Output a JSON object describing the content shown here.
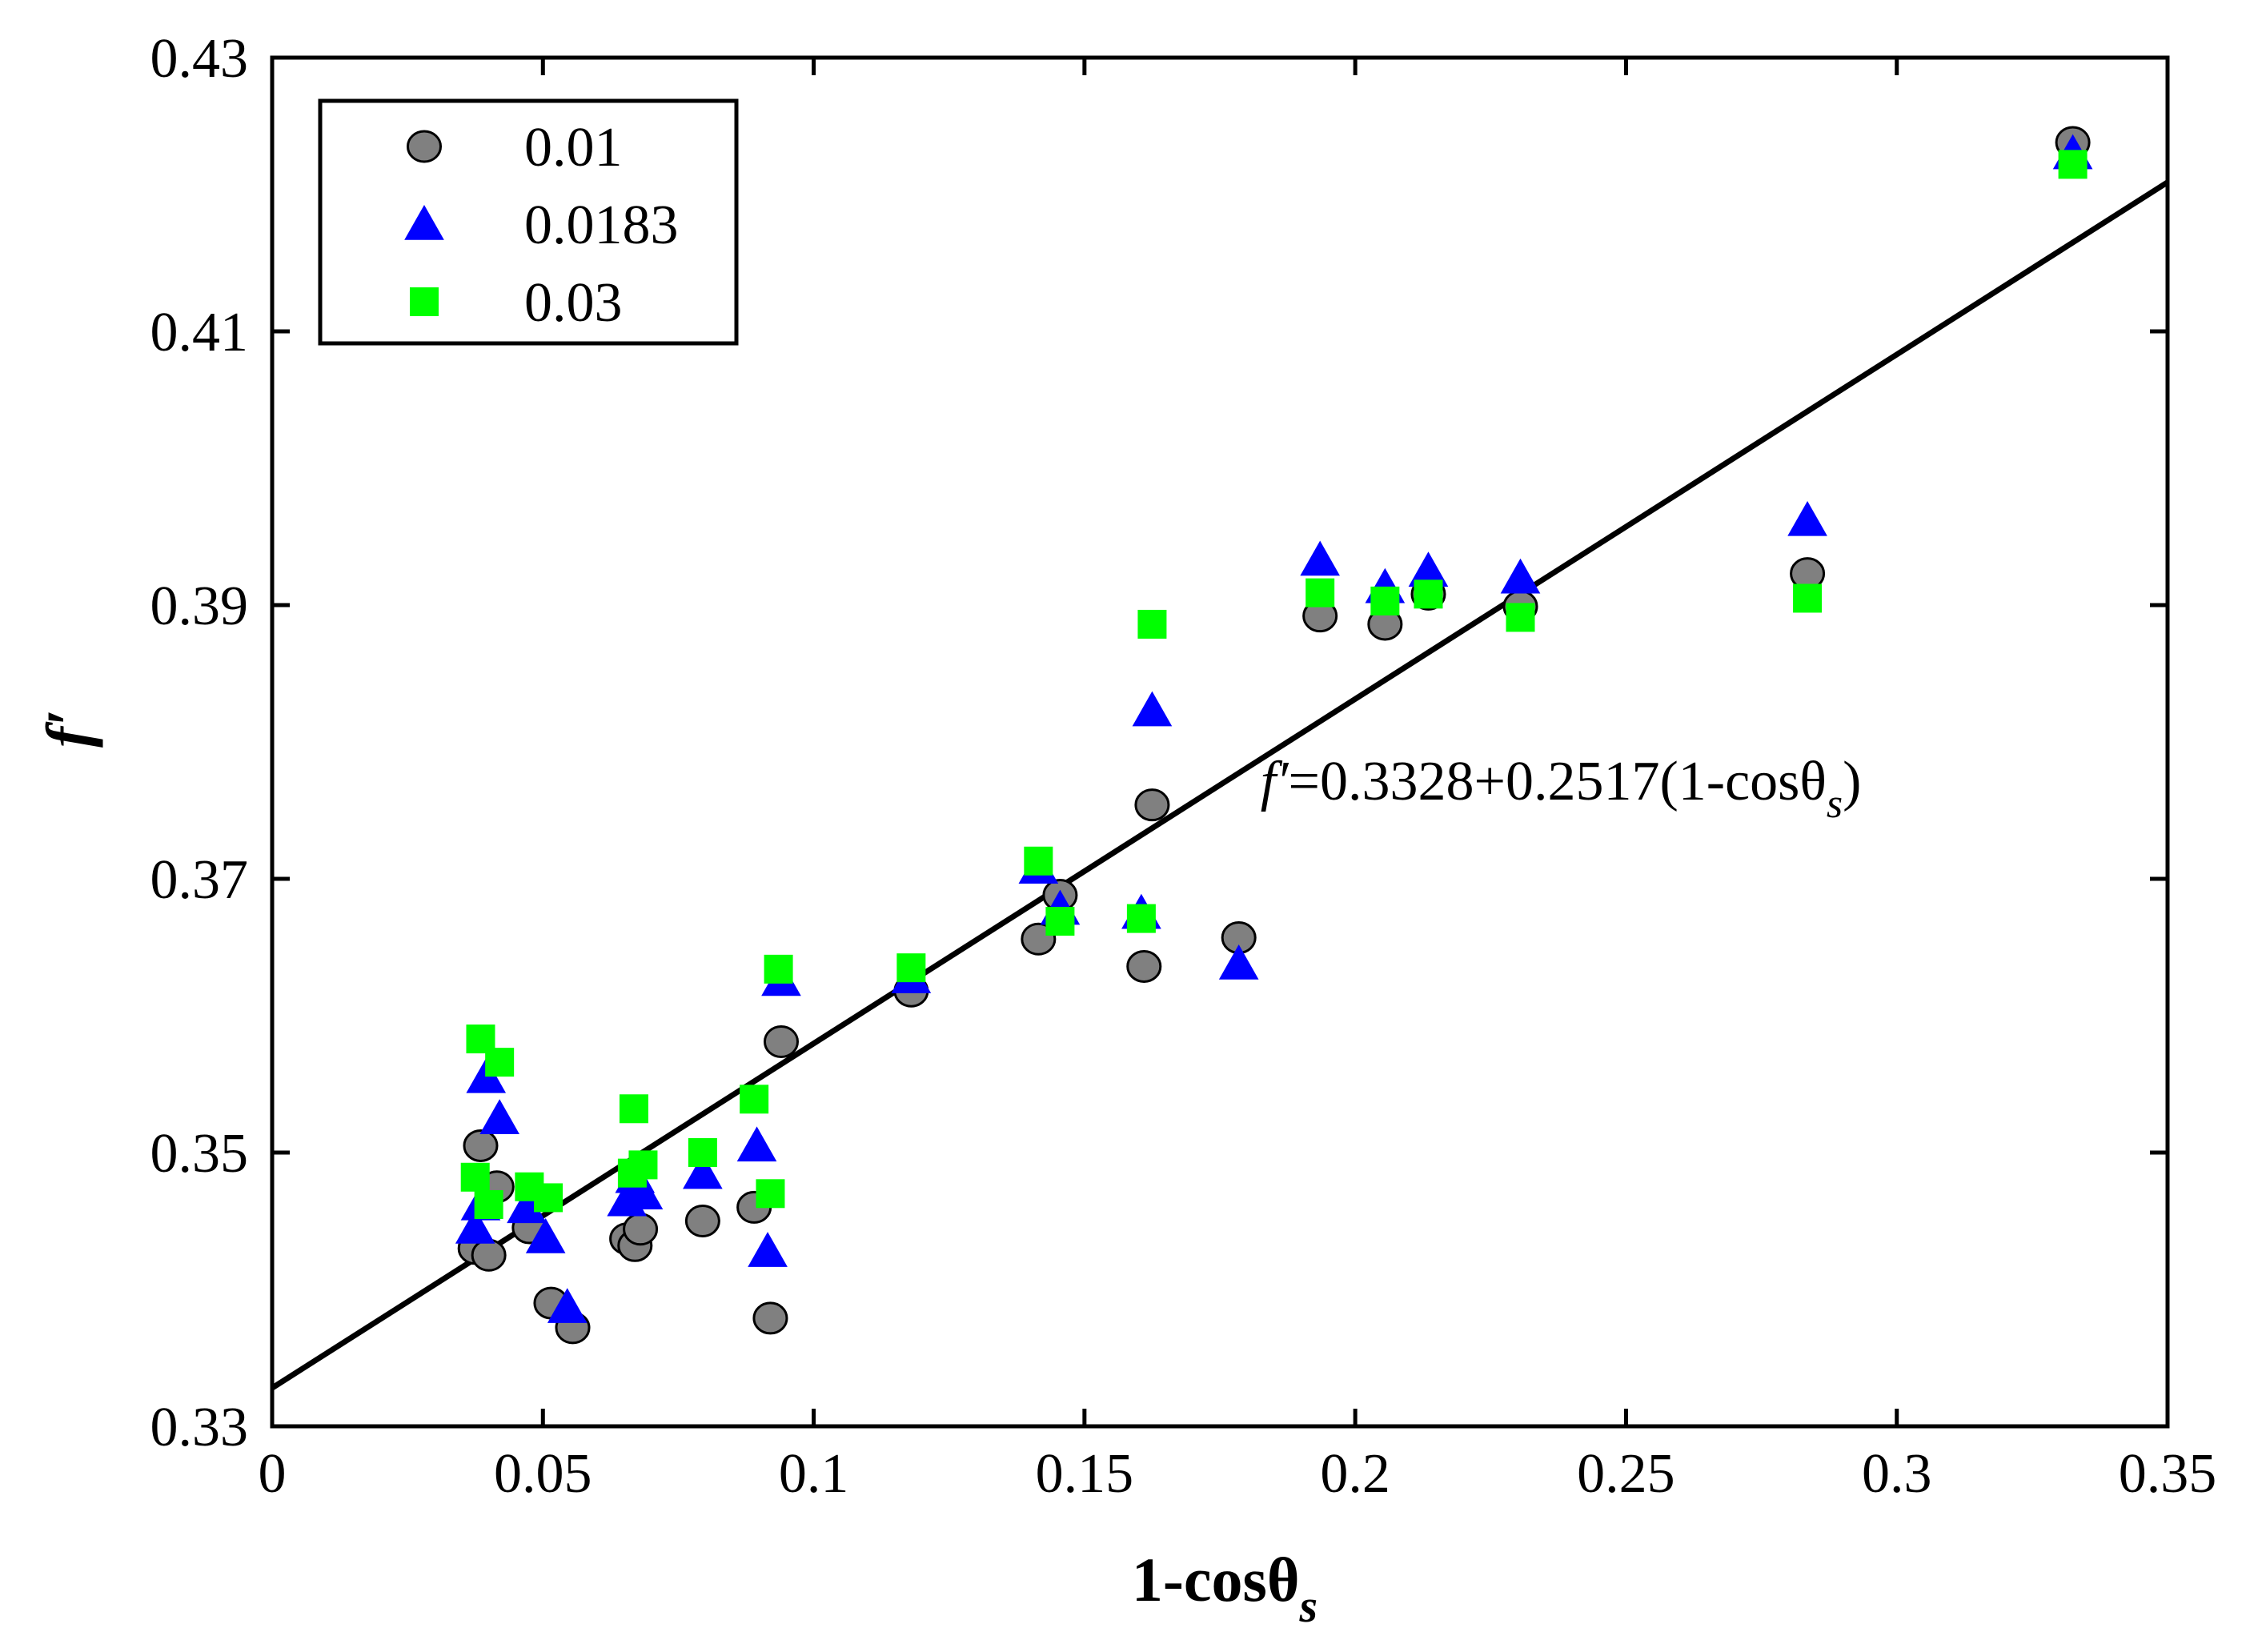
{
  "chart_data": {
    "type": "scatter",
    "title": "",
    "xlabel": "1-cosθs",
    "xlabel_main": "1-cosθ",
    "xlabel_sub": "s",
    "ylabel": "f′",
    "xlim": [
      0,
      0.35
    ],
    "ylim": [
      0.33,
      0.43
    ],
    "xticks": [
      0,
      0.05,
      0.1,
      0.15,
      0.2,
      0.25,
      0.3,
      0.35
    ],
    "xtick_labels": [
      "0",
      "0.05",
      "0.1",
      "0.15",
      "0.2",
      "0.25",
      "0.3",
      "0.35"
    ],
    "yticks": [
      0.33,
      0.35,
      0.37,
      0.39,
      0.41,
      0.43
    ],
    "ytick_labels": [
      "0.33",
      "0.35",
      "0.37",
      "0.39",
      "0.41",
      "0.43"
    ],
    "grid": false,
    "legend_position": "top-left",
    "series": [
      {
        "name": "0.01",
        "marker": "circle",
        "color": "#808080",
        "edge_color": "#000000",
        "points": [
          [
            0.0375,
            0.343
          ],
          [
            0.0385,
            0.3505
          ],
          [
            0.04,
            0.3425
          ],
          [
            0.0415,
            0.3475
          ],
          [
            0.0475,
            0.3445
          ],
          [
            0.0515,
            0.339
          ],
          [
            0.0555,
            0.3372
          ],
          [
            0.0655,
            0.3437
          ],
          [
            0.067,
            0.3432
          ],
          [
            0.068,
            0.3444
          ],
          [
            0.0795,
            0.345
          ],
          [
            0.089,
            0.346
          ],
          [
            0.092,
            0.3379
          ],
          [
            0.094,
            0.3581
          ],
          [
            0.118,
            0.3618
          ],
          [
            0.1415,
            0.3656
          ],
          [
            0.1455,
            0.3688
          ],
          [
            0.161,
            0.3636
          ],
          [
            0.1625,
            0.3754
          ],
          [
            0.1785,
            0.3657
          ],
          [
            0.1935,
            0.3892
          ],
          [
            0.2055,
            0.3886
          ],
          [
            0.2135,
            0.3908
          ],
          [
            0.2305,
            0.3899
          ],
          [
            0.2835,
            0.3923
          ],
          [
            0.3325,
            0.4238
          ]
        ]
      },
      {
        "name": "0.0183",
        "marker": "triangle",
        "color": "#0000ff",
        "edge_color": "#0000ff",
        "points": [
          [
            0.0375,
            0.3445
          ],
          [
            0.0385,
            0.3462
          ],
          [
            0.0395,
            0.3555
          ],
          [
            0.042,
            0.3525
          ],
          [
            0.047,
            0.346
          ],
          [
            0.0505,
            0.3438
          ],
          [
            0.0545,
            0.3387
          ],
          [
            0.0655,
            0.3465
          ],
          [
            0.067,
            0.3482
          ],
          [
            0.0685,
            0.347
          ],
          [
            0.0795,
            0.3485
          ],
          [
            0.0895,
            0.3505
          ],
          [
            0.0915,
            0.3428
          ],
          [
            0.094,
            0.3626
          ],
          [
            0.118,
            0.3628
          ],
          [
            0.1415,
            0.3708
          ],
          [
            0.1455,
            0.3678
          ],
          [
            0.1605,
            0.3675
          ],
          [
            0.1625,
            0.3823
          ],
          [
            0.1785,
            0.3638
          ],
          [
            0.1935,
            0.3933
          ],
          [
            0.2055,
            0.3913
          ],
          [
            0.2135,
            0.3925
          ],
          [
            0.2305,
            0.392
          ],
          [
            0.2835,
            0.3962
          ],
          [
            0.3325,
            0.423
          ]
        ]
      },
      {
        "name": "0.03",
        "marker": "square",
        "color": "#00ff00",
        "edge_color": "#00ff00",
        "points": [
          [
            0.0375,
            0.3482
          ],
          [
            0.0385,
            0.3583
          ],
          [
            0.04,
            0.3462
          ],
          [
            0.042,
            0.3566
          ],
          [
            0.0475,
            0.3475
          ],
          [
            0.051,
            0.3467
          ],
          [
            0.0665,
            0.3485
          ],
          [
            0.0668,
            0.3532
          ],
          [
            0.0685,
            0.3491
          ],
          [
            0.0795,
            0.35
          ],
          [
            0.089,
            0.3539
          ],
          [
            0.092,
            0.347
          ],
          [
            0.0935,
            0.3634
          ],
          [
            0.118,
            0.3635
          ],
          [
            0.1415,
            0.3713
          ],
          [
            0.1455,
            0.3669
          ],
          [
            0.1605,
            0.3671
          ],
          [
            0.1625,
            0.3886
          ],
          [
            0.1935,
            0.3909
          ],
          [
            0.2055,
            0.3903
          ],
          [
            0.2135,
            0.3908
          ],
          [
            0.2305,
            0.3891
          ],
          [
            0.2835,
            0.3905
          ],
          [
            0.3325,
            0.4222
          ]
        ]
      }
    ],
    "fit_line": {
      "intercept": 0.3328,
      "slope": 0.2517,
      "x_range": [
        0,
        0.35
      ],
      "color": "#000000"
    },
    "annotation": {
      "prefix": "f′",
      "body": "=0.3328+0.2517(1-cosθ",
      "subscript": "s",
      "suffix": ")",
      "anchor": [
        0.1825,
        0.3758
      ]
    }
  }
}
